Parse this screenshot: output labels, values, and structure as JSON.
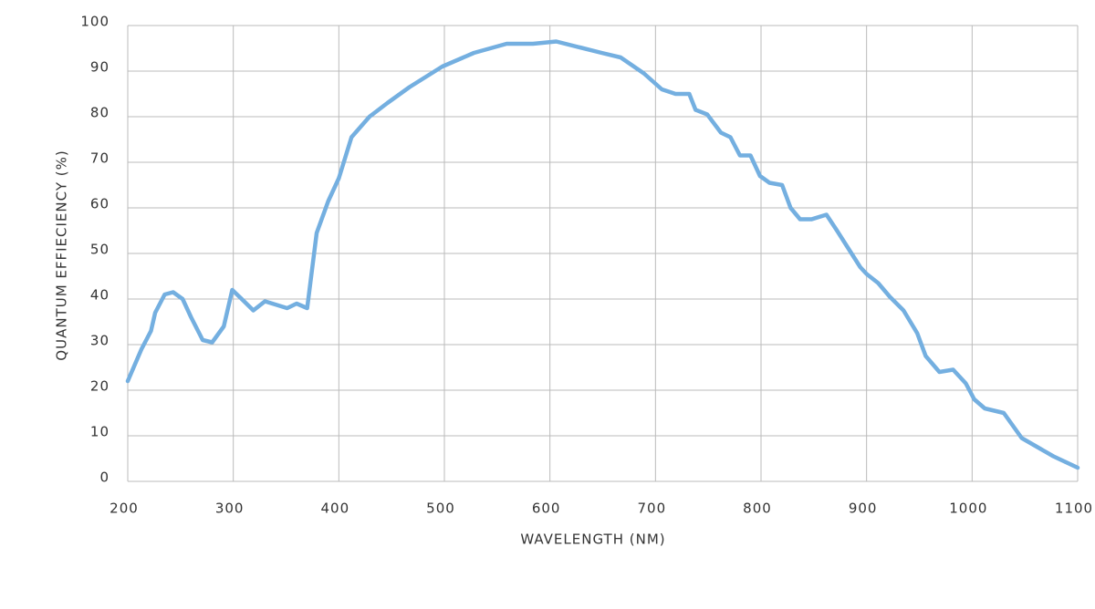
{
  "chart_data": {
    "type": "line",
    "x_label": "WAVELENGTH (NM)",
    "y_label": "QUANTUM EFFIECIENCY (%)",
    "x": [
      200,
      213,
      222,
      226,
      235,
      243,
      252,
      260,
      271,
      280,
      291,
      299,
      308,
      319,
      330,
      351,
      360,
      370,
      373,
      379,
      390,
      400,
      412,
      429,
      446,
      467,
      498,
      528,
      559,
      584,
      606,
      649,
      667,
      689,
      706,
      719,
      732,
      738,
      749,
      762,
      771,
      780,
      790,
      799,
      808,
      820,
      828,
      837,
      848,
      862,
      872,
      883,
      894,
      900,
      911,
      922,
      935,
      948,
      956,
      969,
      982,
      994,
      1002,
      1012,
      1030,
      1047,
      1062,
      1077,
      1100
    ],
    "series": [
      {
        "color": "#74afe0",
        "values": [
          22,
          29,
          33,
          37,
          41,
          41.5,
          40,
          36,
          31,
          30.5,
          34,
          42,
          40,
          37.5,
          39.5,
          38,
          39,
          38,
          43.5,
          54.5,
          61.5,
          66.5,
          75.5,
          80,
          83,
          86.5,
          91,
          94,
          96,
          96,
          96.5,
          94,
          93,
          89.5,
          86,
          85,
          85,
          81.5,
          80.5,
          76.5,
          75.5,
          71.5,
          71.5,
          67,
          65.5,
          65,
          60,
          57.5,
          57.5,
          58.5,
          55,
          51,
          47,
          45.5,
          43.5,
          40.5,
          37.5,
          32.5,
          27.5,
          24,
          24.5,
          21.5,
          18,
          16,
          15,
          9.5,
          7.5,
          5.5,
          3
        ]
      }
    ],
    "xlim": [
      200,
      1100
    ],
    "ylim": [
      0,
      100
    ],
    "xticks": [
      200,
      300,
      400,
      500,
      600,
      700,
      800,
      900,
      1000,
      1100
    ],
    "yticks": [
      0,
      10,
      20,
      30,
      40,
      50,
      60,
      70,
      80,
      90,
      100
    ],
    "grid": true
  }
}
